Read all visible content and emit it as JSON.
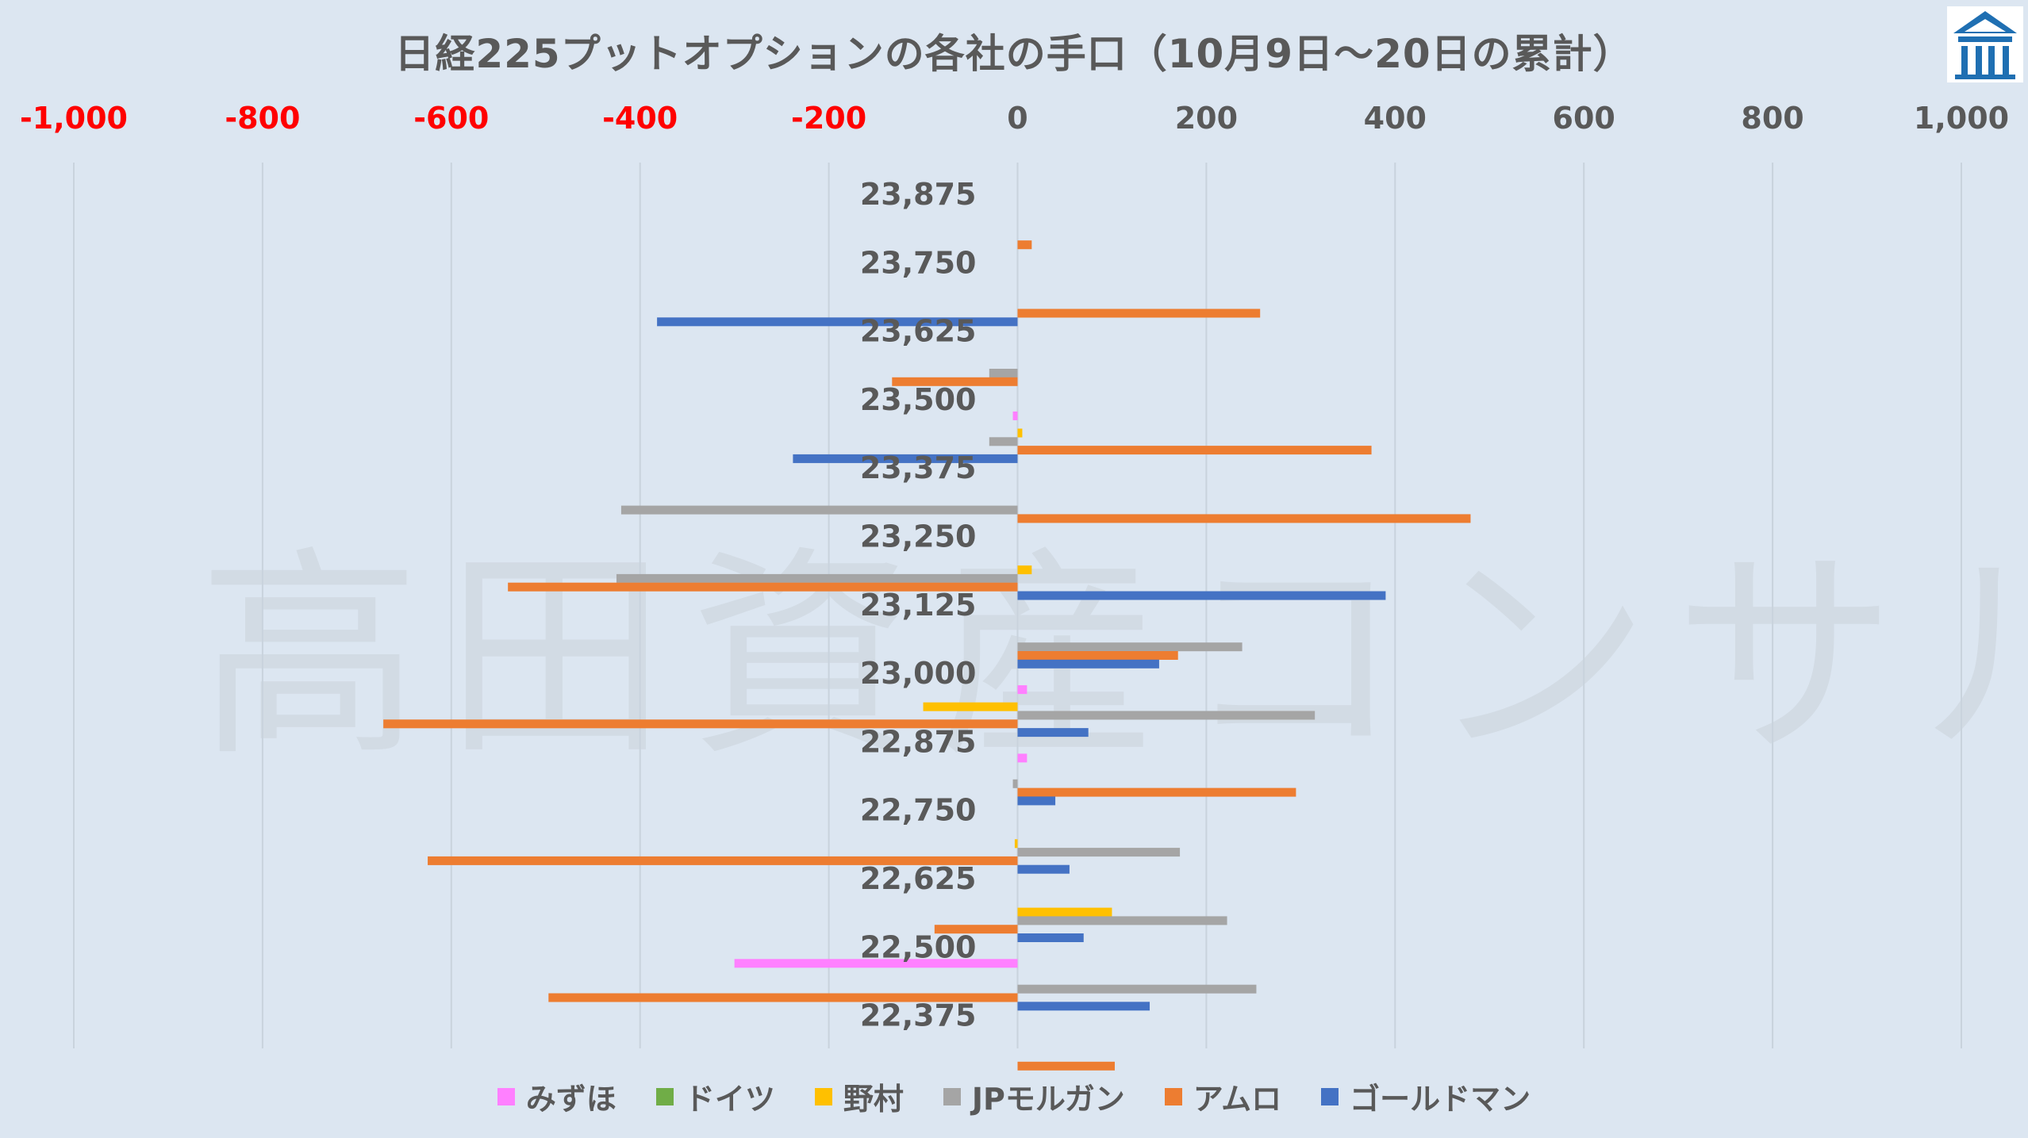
{
  "chart_data": {
    "type": "bar",
    "orientation": "horizontal",
    "title": "日経225プットオプションの各社の手口（10月9日～20日の累計）",
    "xlim": [
      -1000,
      1000
    ],
    "x_ticks": [
      "-1,000",
      "-800",
      "-600",
      "-400",
      "-200",
      "0",
      "200",
      "400",
      "600",
      "800",
      "1,000"
    ],
    "x_tick_values": [
      -1000,
      -800,
      -600,
      -400,
      -200,
      0,
      200,
      400,
      600,
      800,
      1000
    ],
    "negative_tick_color": "#ff0000",
    "positive_tick_color": "#595959",
    "grid": true,
    "legend_position": "bottom",
    "categories": [
      "23,875",
      "23,750",
      "23,625",
      "23,500",
      "23,375",
      "23,250",
      "23,125",
      "23,000",
      "22,875",
      "22,750",
      "22,625",
      "22,500",
      "22,375"
    ],
    "series": [
      {
        "name": "みずほ",
        "color": "#ff80ff",
        "values": [
          0,
          0,
          0,
          -5,
          0,
          0,
          0,
          10,
          10,
          0,
          0,
          -300,
          0
        ]
      },
      {
        "name": "ドイツ",
        "color": "#70ad47",
        "values": [
          0,
          0,
          0,
          0,
          0,
          0,
          0,
          0,
          0,
          0,
          0,
          0,
          0
        ]
      },
      {
        "name": "野村",
        "color": "#ffc000",
        "values": [
          0,
          0,
          0,
          5,
          0,
          15,
          0,
          -100,
          0,
          -3,
          100,
          0,
          0
        ]
      },
      {
        "name": "JPモルガン",
        "color": "#a5a5a5",
        "values": [
          0,
          0,
          -30,
          -30,
          -420,
          -425,
          238,
          315,
          -5,
          172,
          222,
          253,
          0
        ]
      },
      {
        "name": "アムロ",
        "color": "#ed7d31",
        "values": [
          15,
          257,
          -133,
          375,
          480,
          -540,
          170,
          -672,
          295,
          -625,
          -88,
          -497,
          103
        ]
      },
      {
        "name": "ゴールドマン",
        "color": "#4472c4",
        "values": [
          0,
          -382,
          0,
          -238,
          0,
          390,
          150,
          75,
          40,
          55,
          70,
          140,
          0
        ]
      }
    ]
  },
  "branding": {
    "logo_icon": "building-logo-icon",
    "logo_color": "#1f6fb2",
    "watermark": "高田資産コンサル"
  }
}
